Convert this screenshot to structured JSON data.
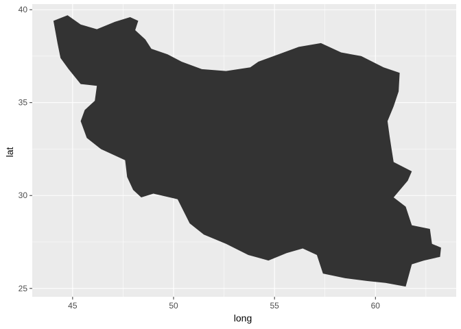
{
  "chart_data": {
    "type": "map",
    "xlabel": "long",
    "ylabel": "lat",
    "xlim": [
      43.0,
      64.0
    ],
    "ylim": [
      24.55,
      40.3
    ],
    "x_ticks": [
      45,
      50,
      55,
      60
    ],
    "y_ticks": [
      25,
      30,
      35,
      40
    ],
    "grid": true,
    "panel_background": "#ebebeb",
    "grid_color": "#ffffff",
    "fill_color": "#333333",
    "region_outline": [
      [
        44.05,
        39.4
      ],
      [
        44.75,
        39.7
      ],
      [
        45.4,
        39.2
      ],
      [
        46.2,
        38.95
      ],
      [
        47.1,
        39.35
      ],
      [
        47.85,
        39.6
      ],
      [
        48.25,
        39.4
      ],
      [
        48.1,
        38.9
      ],
      [
        48.6,
        38.4
      ],
      [
        48.9,
        37.9
      ],
      [
        49.7,
        37.6
      ],
      [
        50.4,
        37.2
      ],
      [
        51.4,
        36.8
      ],
      [
        52.6,
        36.7
      ],
      [
        53.8,
        36.9
      ],
      [
        54.2,
        37.2
      ],
      [
        55.2,
        37.6
      ],
      [
        56.2,
        38.0
      ],
      [
        57.3,
        38.2
      ],
      [
        58.3,
        37.7
      ],
      [
        59.3,
        37.5
      ],
      [
        60.4,
        36.9
      ],
      [
        61.2,
        36.6
      ],
      [
        61.15,
        35.6
      ],
      [
        60.9,
        34.8
      ],
      [
        60.6,
        34.0
      ],
      [
        60.7,
        33.2
      ],
      [
        60.8,
        32.5
      ],
      [
        60.9,
        31.8
      ],
      [
        61.8,
        31.3
      ],
      [
        61.6,
        30.8
      ],
      [
        60.9,
        29.9
      ],
      [
        61.5,
        29.4
      ],
      [
        61.8,
        28.4
      ],
      [
        62.7,
        28.2
      ],
      [
        62.8,
        27.4
      ],
      [
        63.25,
        27.2
      ],
      [
        63.2,
        26.7
      ],
      [
        62.4,
        26.5
      ],
      [
        61.8,
        26.3
      ],
      [
        61.6,
        25.5
      ],
      [
        61.5,
        25.1
      ],
      [
        60.5,
        25.3
      ],
      [
        59.6,
        25.4
      ],
      [
        58.5,
        25.55
      ],
      [
        57.4,
        25.8
      ],
      [
        57.1,
        26.8
      ],
      [
        56.4,
        27.15
      ],
      [
        55.6,
        26.9
      ],
      [
        54.7,
        26.5
      ],
      [
        53.7,
        26.8
      ],
      [
        52.6,
        27.4
      ],
      [
        51.5,
        27.9
      ],
      [
        50.8,
        28.5
      ],
      [
        50.2,
        29.8
      ],
      [
        49.0,
        30.1
      ],
      [
        48.4,
        29.9
      ],
      [
        48.0,
        30.3
      ],
      [
        47.7,
        31.0
      ],
      [
        47.6,
        31.9
      ],
      [
        46.4,
        32.5
      ],
      [
        45.7,
        33.1
      ],
      [
        45.4,
        34.0
      ],
      [
        45.6,
        34.6
      ],
      [
        46.1,
        35.1
      ],
      [
        46.2,
        35.9
      ],
      [
        45.4,
        36.0
      ],
      [
        44.8,
        36.8
      ],
      [
        44.4,
        37.4
      ],
      [
        44.25,
        38.2
      ],
      [
        44.05,
        39.4
      ]
    ]
  }
}
